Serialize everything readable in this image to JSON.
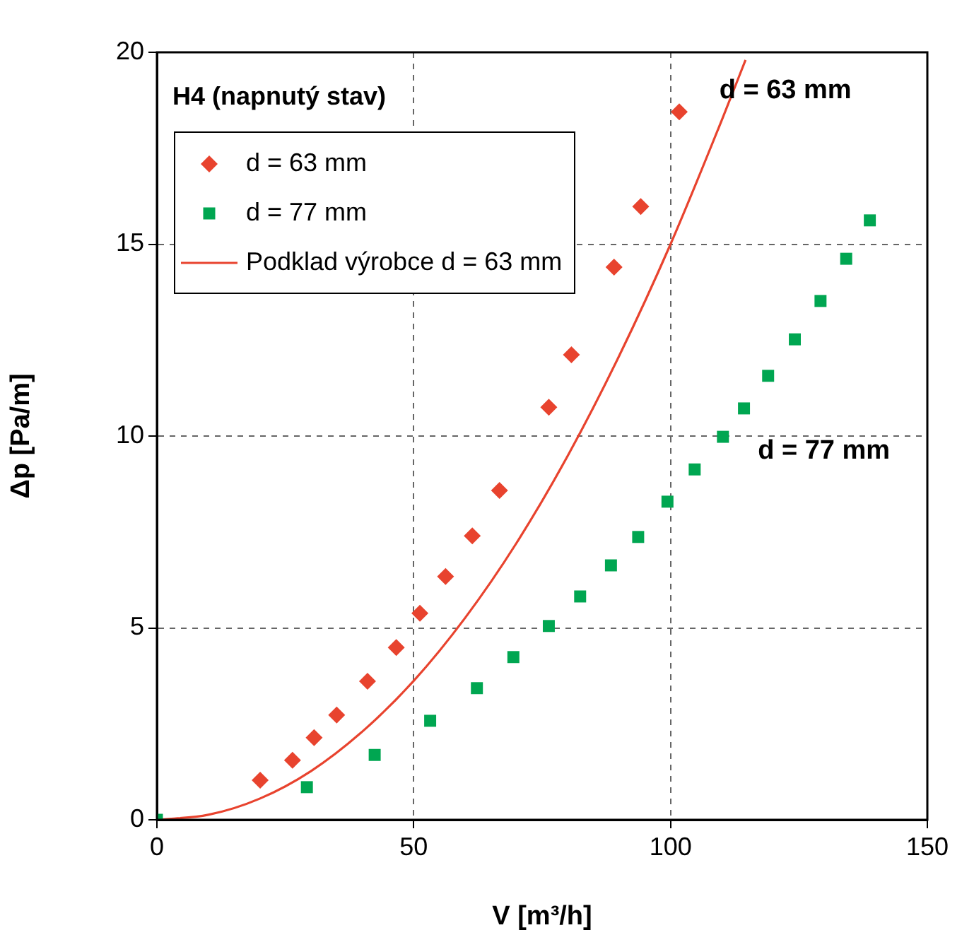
{
  "chart_data": {
    "type": "scatter",
    "title": "H4 (napnutý stav)",
    "xlabel": "V [m³/h]",
    "ylabel": "Δp [Pa/m]",
    "xlim": [
      0,
      150
    ],
    "xticks": [
      0,
      50,
      100,
      150
    ],
    "ylim": [
      0,
      20
    ],
    "yticks": [
      0,
      5,
      10,
      15,
      20
    ],
    "grid": true,
    "legend": "top left",
    "series": [
      {
        "name": "d = 63 mm",
        "marker": "diamond",
        "color": "#e8432e",
        "x": [
          20.1,
          26.4,
          30.6,
          35.0,
          41.0,
          46.6,
          51.2,
          56.2,
          61.4,
          66.7,
          76.3,
          80.7,
          89.0,
          94.2,
          101.7
        ],
        "values": [
          1.03,
          1.55,
          2.14,
          2.73,
          3.61,
          4.49,
          5.38,
          6.34,
          7.4,
          8.58,
          10.75,
          12.12,
          14.4,
          15.98,
          18.45
        ]
      },
      {
        "name": "d = 77 mm",
        "marker": "square",
        "color": "#00a651",
        "x": [
          0,
          29.2,
          42.4,
          53.2,
          62.3,
          69.4,
          76.3,
          82.4,
          88.4,
          93.7,
          99.4,
          104.7,
          110.2,
          114.3,
          119.0,
          124.2,
          129.2,
          134.2,
          138.8
        ],
        "values": [
          0,
          0.85,
          1.69,
          2.58,
          3.43,
          4.24,
          5.05,
          5.82,
          6.63,
          7.37,
          8.29,
          9.13,
          9.98,
          10.72,
          11.57,
          12.52,
          13.52,
          14.62,
          15.62
        ]
      },
      {
        "name": "Podklad výrobce d = 63 mm",
        "type": "line",
        "marker": "none",
        "color": "#e8432e",
        "x": [
          0,
          10,
          20,
          30,
          40,
          50,
          60,
          70,
          80,
          90,
          100,
          110,
          114.6
        ],
        "values": [
          0,
          0.13,
          0.55,
          1.27,
          2.3,
          3.62,
          5.26,
          7.21,
          9.49,
          12.09,
          15,
          18.24,
          19.8
        ]
      }
    ],
    "annotations": [
      "d = 63 mm",
      "d = 77 mm"
    ]
  }
}
